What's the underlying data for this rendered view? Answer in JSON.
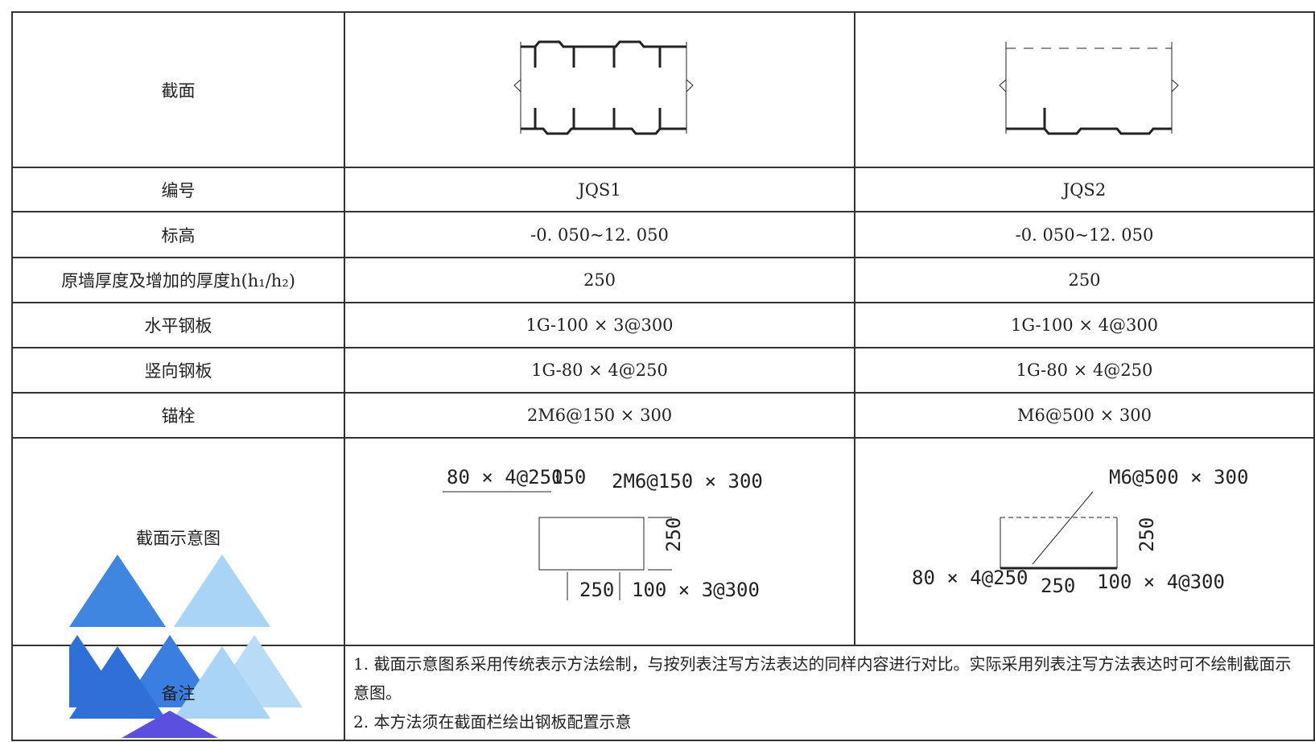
{
  "table": {
    "rows": [
      [
        "截面",
        "",
        ""
      ],
      [
        "编号",
        "JQS1",
        "JQS2"
      ],
      [
        "标高",
        "-0. 050~12. 050",
        "-0. 050~12. 050"
      ],
      [
        "原墙厚度及增加的厚度h(h₁/h₂)",
        "250",
        "250"
      ],
      [
        "水平钢板",
        "1G-100 × 3@300",
        "1G-100 × 4@300"
      ],
      [
        "竖向钢板",
        "1G-80 × 4@250",
        "1G-80 × 4@250"
      ],
      [
        "锚栓",
        "2M6@150 × 300",
        "M6@500 × 300"
      ],
      [
        "截面示意图",
        "",
        ""
      ]
    ],
    "diagram1": {
      "labels": [
        "80 × 4@250",
        "150",
        "2M6@150 × 300",
        "250",
        "250",
        "100 × 3@300"
      ]
    },
    "diagram2": {
      "labels": [
        "M6@500 × 300",
        "250",
        "80 × 4@250",
        "250",
        "100 × 4@300"
      ]
    },
    "notes": {
      "label": "备注",
      "items": [
        "1. 截面示意图系采用传统表示方法绘制，与按列表注写方法表达的同样内容进行对比。实际采用列表注写方法表达时可不绘制截面示意图。",
        "2. 本方法须在截面栏绘出钢板配置示意"
      ]
    }
  }
}
